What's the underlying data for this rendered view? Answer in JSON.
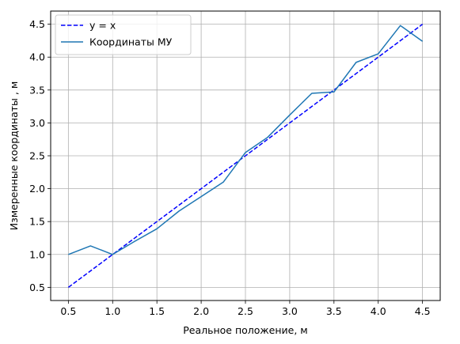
{
  "chart_data": {
    "type": "line",
    "title": "",
    "xlabel": "Реальное положение, м",
    "ylabel": "Измеренные координаты , м",
    "xlim": [
      0.3,
      4.7
    ],
    "ylim": [
      0.3,
      4.7
    ],
    "xticks": [
      0.5,
      1.0,
      1.5,
      2.0,
      2.5,
      3.0,
      3.5,
      4.0,
      4.5
    ],
    "yticks": [
      0.5,
      1.0,
      1.5,
      2.0,
      2.5,
      3.0,
      3.5,
      4.0,
      4.5
    ],
    "xtick_labels": [
      "0.5",
      "1.0",
      "1.5",
      "2.0",
      "2.5",
      "3.0",
      "3.5",
      "4.0",
      "4.5"
    ],
    "ytick_labels": [
      "0.5",
      "1.0",
      "1.5",
      "2.0",
      "2.5",
      "3.0",
      "3.5",
      "4.0",
      "4.5"
    ],
    "grid": true,
    "legend_position": "top-left",
    "series": [
      {
        "name": "y = x",
        "style": "dashed",
        "color": "#0000ff",
        "x": [
          0.5,
          4.5
        ],
        "y": [
          0.5,
          4.5
        ]
      },
      {
        "name": "Координаты МУ",
        "style": "solid",
        "color": "#1f77b4",
        "x": [
          0.5,
          0.75,
          1.0,
          1.25,
          1.5,
          1.75,
          2.0,
          2.25,
          2.5,
          2.75,
          3.0,
          3.25,
          3.5,
          3.75,
          4.0,
          4.25,
          4.5
        ],
        "y": [
          1.0,
          1.13,
          1.0,
          1.2,
          1.39,
          1.66,
          1.88,
          2.1,
          2.55,
          2.78,
          3.12,
          3.45,
          3.47,
          3.92,
          4.05,
          4.48,
          4.24
        ]
      }
    ]
  }
}
